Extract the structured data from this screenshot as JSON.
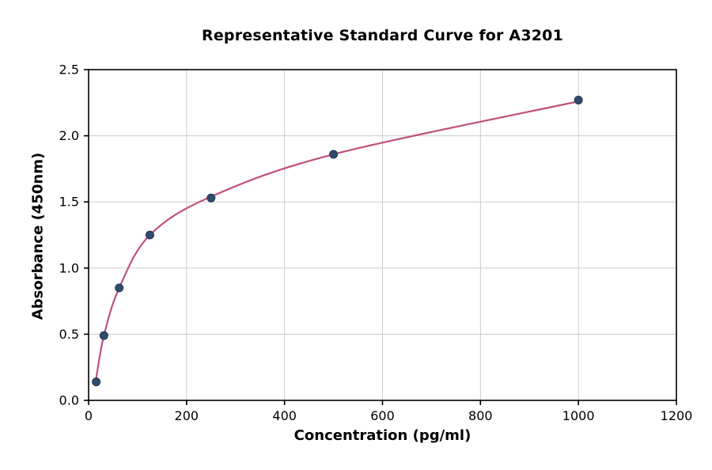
{
  "chart_data": {
    "type": "scatter",
    "title": "Representative Standard Curve for A3201",
    "xlabel": "Concentration (pg/ml)",
    "ylabel": "Absorbance (450nm)",
    "xlim": [
      0,
      1200
    ],
    "ylim": [
      0,
      2.5
    ],
    "xticks": [
      0,
      200,
      400,
      600,
      800,
      1000,
      1200
    ],
    "xtick_labels": [
      "0",
      "200",
      "400",
      "600",
      "800",
      "1000",
      "1200"
    ],
    "yticks": [
      0,
      0.5,
      1.0,
      1.5,
      2.0,
      2.5
    ],
    "ytick_labels": [
      "0.0",
      "0.5",
      "1.0",
      "1.5",
      "2.0",
      "2.5"
    ],
    "grid": true,
    "legend": "none",
    "series": [
      {
        "name": "standard-points",
        "x": [
          15.6,
          31.25,
          62.5,
          125,
          250,
          500,
          1000
        ],
        "y": [
          0.14,
          0.49,
          0.85,
          1.25,
          1.53,
          1.86,
          2.27
        ]
      }
    ],
    "fit_curve": {
      "name": "4pl-fit-line",
      "x": [
        15.6,
        31.25,
        62.5,
        125,
        250,
        500,
        1000
      ],
      "y": [
        0.17,
        0.49,
        0.85,
        1.25,
        1.54,
        1.86,
        2.26
      ]
    },
    "colors": {
      "line": "#c0517a",
      "marker": "#2f4b6e",
      "grid": "#cccccc",
      "axis": "#000000",
      "background": "#ffffff"
    }
  }
}
